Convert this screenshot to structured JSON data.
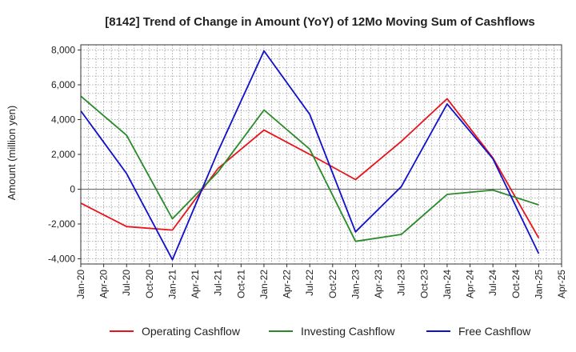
{
  "chart_data": {
    "type": "line",
    "title": "[8142]  Trend of Change in Amount (YoY) of 12Mo Moving Sum of Cashflows",
    "xlabel": "",
    "ylabel": "Amount (million yen)",
    "ylim": [
      -4300,
      8300
    ],
    "yticks": [
      8000,
      6000,
      4000,
      2000,
      0,
      -2000,
      -4000
    ],
    "ytick_labels": [
      "8,000",
      "6,000",
      "4,000",
      "2,000",
      "0",
      "-2,000",
      "-4,000"
    ],
    "x_categories": [
      "Jan-20",
      "Apr-20",
      "Jul-20",
      "Oct-20",
      "Jan-21",
      "Apr-21",
      "Jul-21",
      "Oct-21",
      "Jan-22",
      "Apr-22",
      "Jul-22",
      "Oct-22",
      "Jan-23",
      "Apr-23",
      "Jul-23",
      "Oct-23",
      "Jan-24",
      "Apr-24",
      "Jul-24",
      "Oct-24",
      "Jan-25",
      "Apr-25"
    ],
    "x_points": [
      "Jan-20",
      "Jul-20",
      "Jan-21",
      "Jul-21",
      "Jan-22",
      "Jul-22",
      "Jan-23",
      "Jul-23",
      "Jan-24",
      "Jul-24",
      "Jan-25"
    ],
    "series": [
      {
        "name": "Operating Cashflow",
        "color": "#e8141c",
        "values": [
          -800,
          -2150,
          -2350,
          1200,
          3400,
          2000,
          550,
          2750,
          5200,
          1800,
          -2800
        ]
      },
      {
        "name": "Investing Cashflow",
        "color": "#2a8a2a",
        "values": [
          5350,
          3100,
          -1700,
          1000,
          4550,
          2300,
          -3000,
          -2600,
          -300,
          -50,
          -900
        ]
      },
      {
        "name": "Free Cashflow",
        "color": "#1010cc",
        "values": [
          4500,
          900,
          -4050,
          2200,
          7950,
          4300,
          -2450,
          150,
          4900,
          1750,
          -3700
        ]
      }
    ],
    "grid": true,
    "legend": "bottom"
  }
}
